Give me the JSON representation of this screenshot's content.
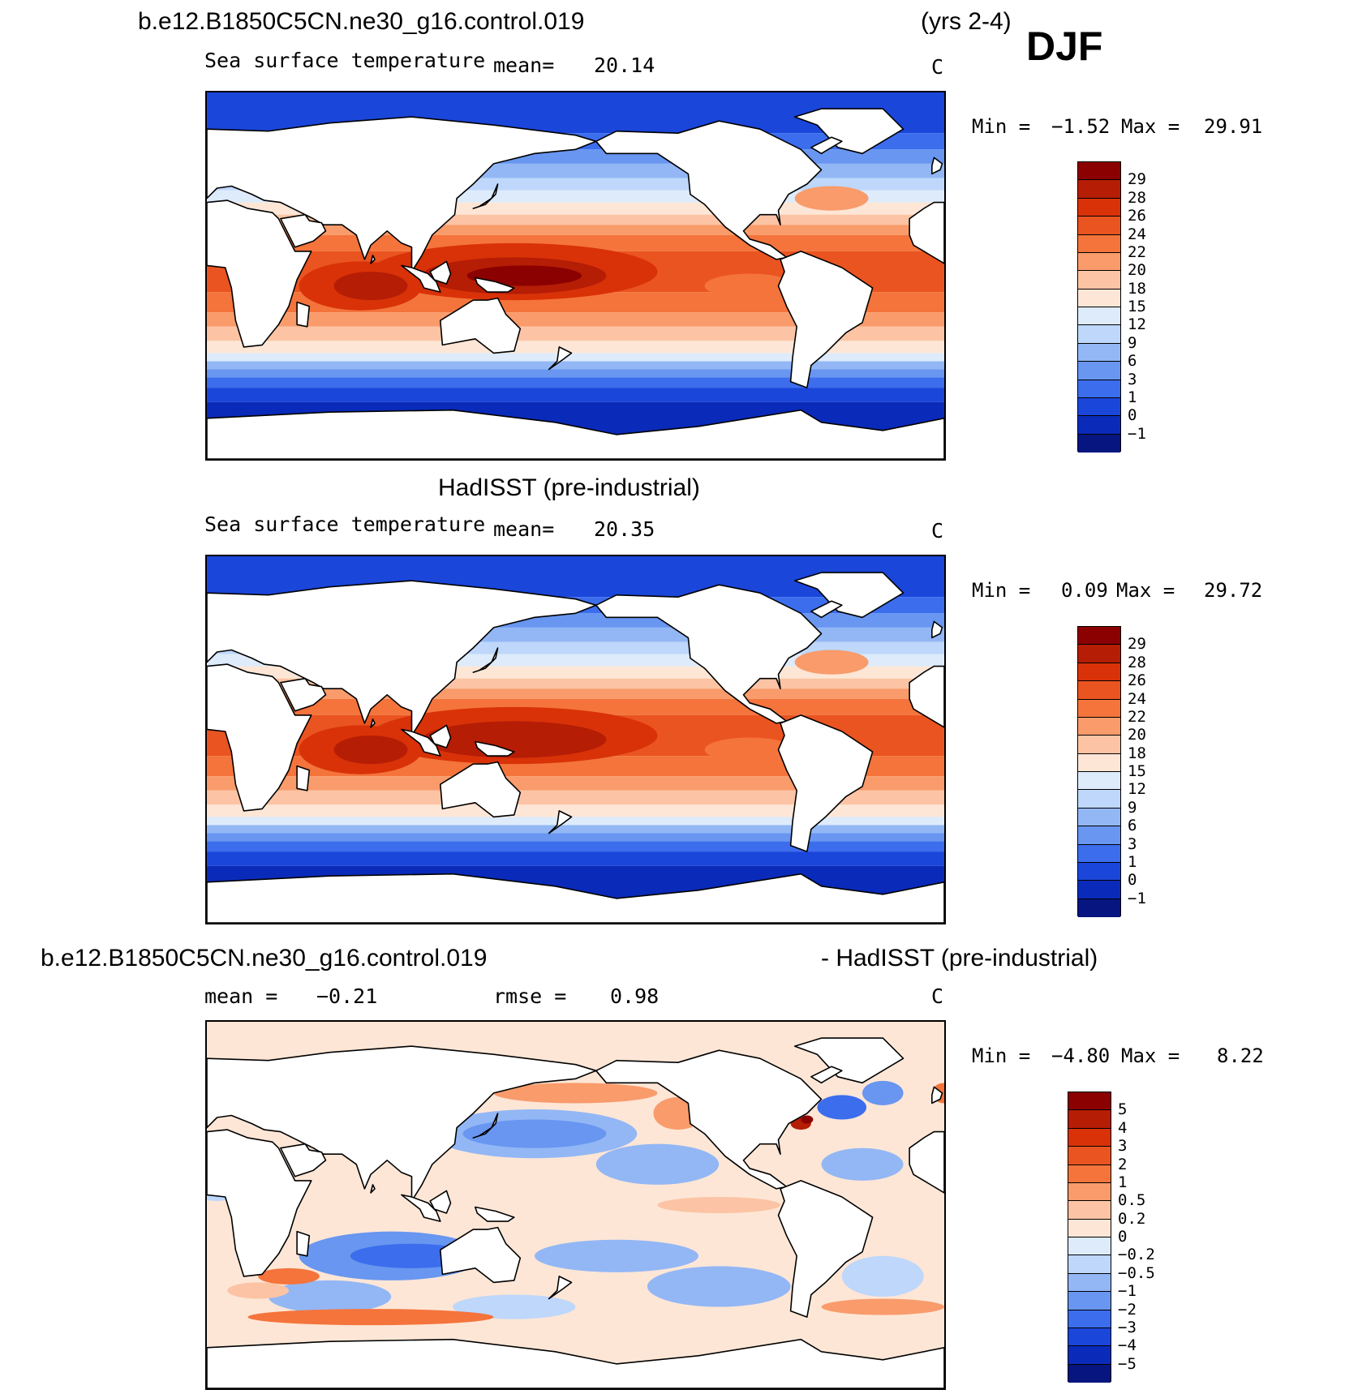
{
  "header": {
    "case_name": "b.e12.B1850C5CN.ne30_g16.control.019",
    "years": "(yrs 2-4)",
    "season": "DJF"
  },
  "panels": [
    {
      "id": "model",
      "variable": "Sea surface temperature",
      "mean_label": "mean=",
      "mean_value": "20.14",
      "units": "C",
      "min_label": "Min =",
      "min_value": "−1.52",
      "max_label": "Max =",
      "max_value": "29.91",
      "colorbar": {
        "labels": [
          "29",
          "28",
          "26",
          "24",
          "22",
          "20",
          "18",
          "15",
          "12",
          "9",
          "6",
          "3",
          "1",
          "0",
          "−1"
        ],
        "colors": [
          "#8b0000",
          "#b51d05",
          "#d93208",
          "#ea5420",
          "#f4743c",
          "#f99b6b",
          "#fcc4a4",
          "#fde6d6",
          "#ddebfb",
          "#bed7fb",
          "#93b7f5",
          "#6896f0",
          "#3b6ded",
          "#1a46da",
          "#0a2bb9",
          "#06157f"
        ]
      }
    },
    {
      "id": "obs",
      "title": "HadISST (pre-industrial)",
      "variable": "Sea surface temperature",
      "mean_label": "mean=",
      "mean_value": "20.35",
      "units": "C",
      "min_label": "Min =",
      "min_value": "0.09",
      "max_label": "Max =",
      "max_value": "29.72",
      "colorbar": {
        "labels": [
          "29",
          "28",
          "26",
          "24",
          "22",
          "20",
          "18",
          "15",
          "12",
          "9",
          "6",
          "3",
          "1",
          "0",
          "−1"
        ],
        "colors": [
          "#8b0000",
          "#b51d05",
          "#d93208",
          "#ea5420",
          "#f4743c",
          "#f99b6b",
          "#fcc4a4",
          "#fde6d6",
          "#ddebfb",
          "#bed7fb",
          "#93b7f5",
          "#6896f0",
          "#3b6ded",
          "#1a46da",
          "#0a2bb9",
          "#06157f"
        ]
      }
    },
    {
      "id": "diff",
      "title_left": "b.e12.B1850C5CN.ne30_g16.control.019",
      "title_right": "- HadISST (pre-industrial)",
      "mean_label": "mean =",
      "mean_value": "−0.21",
      "rmse_label": "rmse =",
      "rmse_value": "0.98",
      "units": "C",
      "min_label": "Min =",
      "min_value": "−4.80",
      "max_label": "Max =",
      "max_value": "8.22",
      "colorbar": {
        "labels": [
          "5",
          "4",
          "3",
          "2",
          "1",
          "0.5",
          "0.2",
          "0",
          "−0.2",
          "−0.5",
          "−1",
          "−2",
          "−3",
          "−4",
          "−5"
        ],
        "colors": [
          "#8b0000",
          "#b51d05",
          "#d93208",
          "#ea5420",
          "#f4743c",
          "#f99b6b",
          "#fcc4a4",
          "#fde6d6",
          "#ddebfb",
          "#bed7fb",
          "#93b7f5",
          "#6896f0",
          "#3b6ded",
          "#1a46da",
          "#0a2bb9",
          "#06157f"
        ]
      }
    }
  ]
}
